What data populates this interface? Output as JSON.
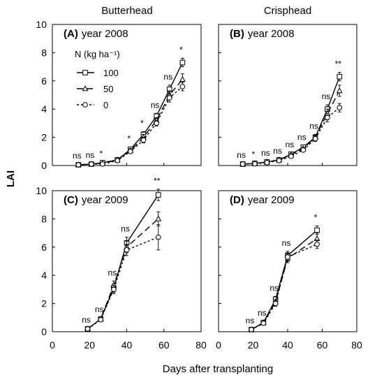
{
  "figure": {
    "col_titles": [
      "Butterhead",
      "Crisphead"
    ],
    "ylabel": "LAI",
    "xlabel": "Days after transplanting",
    "legend": {
      "title": "N (kg ha⁻¹)",
      "entries": [
        "100",
        "50",
        "0"
      ]
    }
  },
  "chart_data": [
    {
      "type": "line",
      "panel": "(A)",
      "subtitle": "year 2008",
      "cultivar": "Butterhead",
      "x": [
        14,
        21,
        27,
        35,
        42,
        49,
        56,
        63,
        70
      ],
      "xlim": [
        0,
        80
      ],
      "ylim": [
        0,
        10
      ],
      "xticks": [
        0,
        20,
        40,
        60,
        80
      ],
      "yticks": [
        0,
        2,
        4,
        6,
        8,
        10
      ],
      "significance": [
        "ns",
        "ns",
        "*",
        "",
        "*",
        "*",
        "ns",
        "ns",
        "*"
      ],
      "series": [
        {
          "name": "100",
          "values": [
            0.05,
            0.1,
            0.2,
            0.4,
            1.15,
            2.2,
            3.5,
            5.4,
            7.3
          ],
          "err": [
            0.05,
            0.05,
            0.05,
            0.1,
            0.15,
            0.2,
            0.2,
            0.3,
            0.3
          ]
        },
        {
          "name": "50",
          "values": [
            0.05,
            0.1,
            0.15,
            0.4,
            1.05,
            2.0,
            3.2,
            5.0,
            6.1
          ],
          "err": [
            0.05,
            0.05,
            0.05,
            0.1,
            0.15,
            0.2,
            0.2,
            0.3,
            0.4
          ]
        },
        {
          "name": "0",
          "values": [
            0.05,
            0.1,
            0.1,
            0.35,
            1.0,
            1.8,
            3.0,
            4.8,
            5.6
          ],
          "err": [
            0.05,
            0.05,
            0.05,
            0.1,
            0.15,
            0.2,
            0.2,
            0.3,
            0.3
          ]
        }
      ]
    },
    {
      "type": "line",
      "panel": "(B)",
      "subtitle": "year 2008",
      "cultivar": "Crisphead",
      "x": [
        14,
        21,
        28,
        35,
        42,
        49,
        56,
        63,
        70
      ],
      "xlim": [
        0,
        80
      ],
      "ylim": [
        0,
        10
      ],
      "xticks": [
        0,
        20,
        40,
        60,
        80
      ],
      "yticks": [
        0,
        2,
        4,
        6,
        8,
        10
      ],
      "significance": [
        "ns",
        "*",
        "ns",
        "ns",
        "ns",
        "ns",
        "ns",
        "ns",
        "**"
      ],
      "series": [
        {
          "name": "100",
          "values": [
            0.1,
            0.15,
            0.25,
            0.4,
            0.8,
            1.3,
            2.0,
            4.0,
            6.3
          ],
          "err": [
            0.05,
            0.05,
            0.05,
            0.05,
            0.1,
            0.1,
            0.2,
            0.3,
            0.3
          ]
        },
        {
          "name": "50",
          "values": [
            0.1,
            0.15,
            0.25,
            0.4,
            0.75,
            1.2,
            2.0,
            3.7,
            5.3
          ],
          "err": [
            0.05,
            0.05,
            0.05,
            0.05,
            0.1,
            0.1,
            0.2,
            0.3,
            0.4
          ]
        },
        {
          "name": "0",
          "values": [
            0.1,
            0.12,
            0.2,
            0.35,
            0.65,
            1.1,
            1.9,
            3.4,
            4.1
          ],
          "err": [
            0.05,
            0.05,
            0.05,
            0.05,
            0.1,
            0.1,
            0.2,
            0.3,
            0.3
          ]
        }
      ]
    },
    {
      "type": "line",
      "panel": "(C)",
      "subtitle": "year 2009",
      "cultivar": "Butterhead",
      "x": [
        19,
        26,
        33,
        40,
        57
      ],
      "xlim": [
        0,
        80
      ],
      "ylim": [
        0,
        10
      ],
      "xticks": [
        0,
        20,
        40,
        60,
        80
      ],
      "yticks": [
        0,
        2,
        4,
        6,
        8,
        10
      ],
      "significance": [
        "ns",
        "ns",
        "ns",
        "ns",
        "**"
      ],
      "series": [
        {
          "name": "100",
          "values": [
            0.2,
            0.9,
            3.1,
            6.3,
            9.7
          ],
          "err": [
            0.05,
            0.1,
            0.3,
            0.4,
            0.4
          ]
        },
        {
          "name": "50",
          "values": [
            0.2,
            0.9,
            3.3,
            6.0,
            8.0
          ],
          "err": [
            0.05,
            0.1,
            0.3,
            0.4,
            0.5
          ]
        },
        {
          "name": "0",
          "values": [
            0.2,
            0.85,
            3.0,
            5.8,
            6.7
          ],
          "err": [
            0.05,
            0.1,
            0.3,
            0.4,
            0.9
          ]
        }
      ]
    },
    {
      "type": "line",
      "panel": "(D)",
      "subtitle": "year 2009",
      "cultivar": "Crisphead",
      "x": [
        19,
        26,
        33,
        40,
        57
      ],
      "xlim": [
        0,
        80
      ],
      "ylim": [
        0,
        10
      ],
      "xticks": [
        0,
        20,
        40,
        60,
        80
      ],
      "yticks": [
        0,
        2,
        4,
        6,
        8,
        10
      ],
      "significance": [
        "ns",
        "ns",
        "ns",
        "ns",
        "*"
      ],
      "series": [
        {
          "name": "100",
          "values": [
            0.15,
            0.65,
            2.3,
            5.4,
            7.2
          ],
          "err": [
            0.05,
            0.1,
            0.2,
            0.3,
            0.3
          ]
        },
        {
          "name": "50",
          "values": [
            0.15,
            0.65,
            2.1,
            5.2,
            6.6
          ],
          "err": [
            0.05,
            0.1,
            0.2,
            0.3,
            0.4
          ]
        },
        {
          "name": "0",
          "values": [
            0.15,
            0.6,
            2.0,
            5.3,
            6.2
          ],
          "err": [
            0.05,
            0.1,
            0.2,
            0.3,
            0.3
          ]
        }
      ]
    }
  ]
}
